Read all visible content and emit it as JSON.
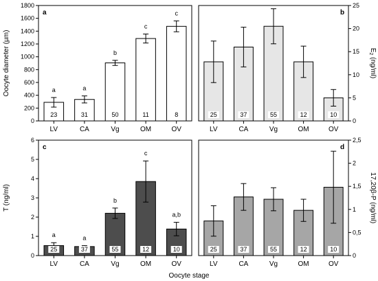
{
  "chart_data": [
    {
      "panel": "a",
      "type": "bar",
      "ylabel": "Oocyte diameter (µm)",
      "ylim": [
        0,
        1800
      ],
      "yticks": [
        0,
        200,
        400,
        600,
        800,
        1000,
        1200,
        1400,
        1600,
        1800
      ],
      "yticks_text": [
        "0",
        "200",
        "400",
        "600",
        "800",
        "1000",
        "1200",
        "1400",
        "1600",
        "1800"
      ],
      "categories": [
        "LV",
        "CA",
        "Vg",
        "OM",
        "OV"
      ],
      "values": [
        290,
        335,
        905,
        1285,
        1475
      ],
      "errors": [
        75,
        55,
        40,
        70,
        85
      ],
      "n": [
        "23",
        "31",
        "50",
        "11",
        "8"
      ],
      "letters": [
        "a",
        "a",
        "b",
        "c",
        "c"
      ],
      "fill": "#ffffff"
    },
    {
      "panel": "b",
      "type": "bar",
      "ylabel": "E2 (ng/ml)",
      "ylim": [
        0,
        25
      ],
      "yticks": [
        0,
        5,
        10,
        15,
        20,
        25
      ],
      "yticks_text": [
        "0",
        "5",
        "10",
        "15",
        "20",
        "25"
      ],
      "categories": [
        "LV",
        "CA",
        "Vg",
        "OM",
        "OV"
      ],
      "values": [
        12.8,
        16.0,
        20.5,
        12.8,
        5.0
      ],
      "errors": [
        4.5,
        4.3,
        3.8,
        3.4,
        1.8
      ],
      "n": [
        "25",
        "37",
        "55",
        "12",
        "10"
      ],
      "letters": [
        "",
        "",
        "",
        "",
        ""
      ],
      "fill": "#e6e6e6"
    },
    {
      "panel": "c",
      "type": "bar",
      "ylabel": "T (ng/ml)",
      "xlabel": "Oocyte stage",
      "ylim": [
        0,
        6
      ],
      "yticks": [
        0,
        1,
        2,
        3,
        4,
        5,
        6
      ],
      "yticks_text": [
        "0",
        "1",
        "2",
        "3",
        "4",
        "5",
        "6"
      ],
      "categories": [
        "LV",
        "CA",
        "Vg",
        "OM",
        "OV"
      ],
      "values": [
        0.52,
        0.47,
        2.2,
        3.85,
        1.38
      ],
      "errors": [
        0.15,
        0.05,
        0.27,
        1.07,
        0.35
      ],
      "n": [
        "25",
        "37",
        "55",
        "12",
        "10"
      ],
      "letters": [
        "a",
        "a",
        "b",
        "c",
        "a,b"
      ],
      "fill": "#4d4d4d"
    },
    {
      "panel": "d",
      "type": "bar",
      "ylabel": "17,20β-P (ng/ml)",
      "ylim": [
        0,
        2.5
      ],
      "yticks": [
        0,
        0.5,
        1,
        1.5,
        2,
        2.5
      ],
      "yticks_text": [
        "0",
        "0,5",
        "1",
        "1,5",
        "2",
        "2,5"
      ],
      "categories": [
        "LV",
        "CA",
        "Vg",
        "OM",
        "OV"
      ],
      "values": [
        0.75,
        1.27,
        1.22,
        0.98,
        1.48
      ],
      "errors": [
        0.33,
        0.29,
        0.25,
        0.24,
        0.78
      ],
      "n": [
        "25",
        "37",
        "55",
        "12",
        "10"
      ],
      "letters": [
        "",
        "",
        "",
        "",
        ""
      ],
      "fill": "#a6a6a6"
    }
  ]
}
